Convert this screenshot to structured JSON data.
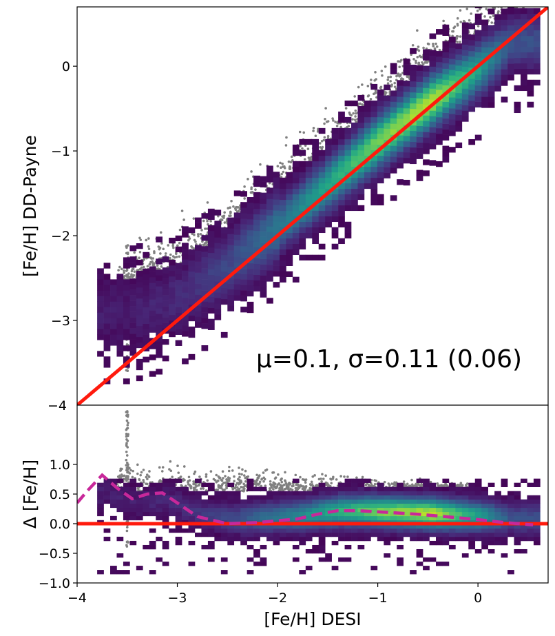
{
  "colors": {
    "identity_line": "#ff1a0d",
    "running_median": "#c8289a",
    "outlier_points": "#808080",
    "frame": "#000000"
  },
  "chart_data": [
    {
      "type": "heatmap",
      "panel": "top",
      "overlay": "scatter",
      "xlim": [
        -4,
        0.7
      ],
      "ylim": [
        -4,
        0.7
      ],
      "xlabel": "",
      "ylabel": "[Fe/H] DD-Payne",
      "x_ticks": [],
      "y_ticks": [
        -3,
        -2,
        -1,
        0
      ],
      "y_tick_labels": [
        "−3",
        "−2",
        "−1",
        "0"
      ],
      "bottom_edge_label": "−4",
      "identity_line": {
        "x": [
          -4,
          0.7
        ],
        "y": [
          -4,
          0.7
        ]
      },
      "annotation": {
        "mu": "μ=0.1,",
        "sigma": "σ=0.11 (0.06)"
      },
      "density_ridge": {
        "x": [
          -3.5,
          -3.0,
          -2.5,
          -2.0,
          -1.5,
          -1.0,
          -0.5,
          0.0,
          0.3
        ],
        "y": [
          -2.95,
          -2.75,
          -2.35,
          -1.9,
          -1.4,
          -0.9,
          -0.45,
          -0.05,
          0.25
        ],
        "relative_density": [
          0.08,
          0.12,
          0.22,
          0.4,
          0.6,
          0.8,
          0.9,
          0.55,
          0.25
        ]
      }
    },
    {
      "type": "heatmap",
      "panel": "bottom",
      "overlay": "scatter",
      "xlim": [
        -4,
        0.7
      ],
      "ylim": [
        -1.0,
        2.0
      ],
      "xlabel": "[Fe/H] DESI",
      "ylabel": "Δ [Fe/H]",
      "x_ticks": [
        -4,
        -3,
        -2,
        -1,
        0
      ],
      "x_tick_labels": [
        "−4",
        "−3",
        "−2",
        "−1",
        "0"
      ],
      "y_ticks": [
        -1.0,
        -0.5,
        0.0,
        0.5,
        1.0
      ],
      "y_tick_labels": [
        "−1.0",
        "−0.5",
        "0.0",
        "0.5",
        "1.0"
      ],
      "zero_line": 0.0,
      "running_median": {
        "x": [
          -4.0,
          -3.9,
          -3.75,
          -3.6,
          -3.45,
          -3.3,
          -3.15,
          -3.0,
          -2.8,
          -2.5,
          -2.2,
          -2.0,
          -1.8,
          -1.6,
          -1.4,
          -1.2,
          -1.0,
          -0.8,
          -0.6,
          -0.4,
          -0.2,
          0.0,
          0.2,
          0.4,
          0.55
        ],
        "y": [
          0.35,
          0.55,
          0.82,
          0.6,
          0.42,
          0.5,
          0.52,
          0.35,
          0.12,
          0.0,
          0.02,
          0.05,
          0.08,
          0.16,
          0.22,
          0.22,
          0.2,
          0.18,
          0.16,
          0.13,
          0.1,
          0.07,
          0.03,
          0.0,
          -0.02
        ]
      }
    }
  ]
}
